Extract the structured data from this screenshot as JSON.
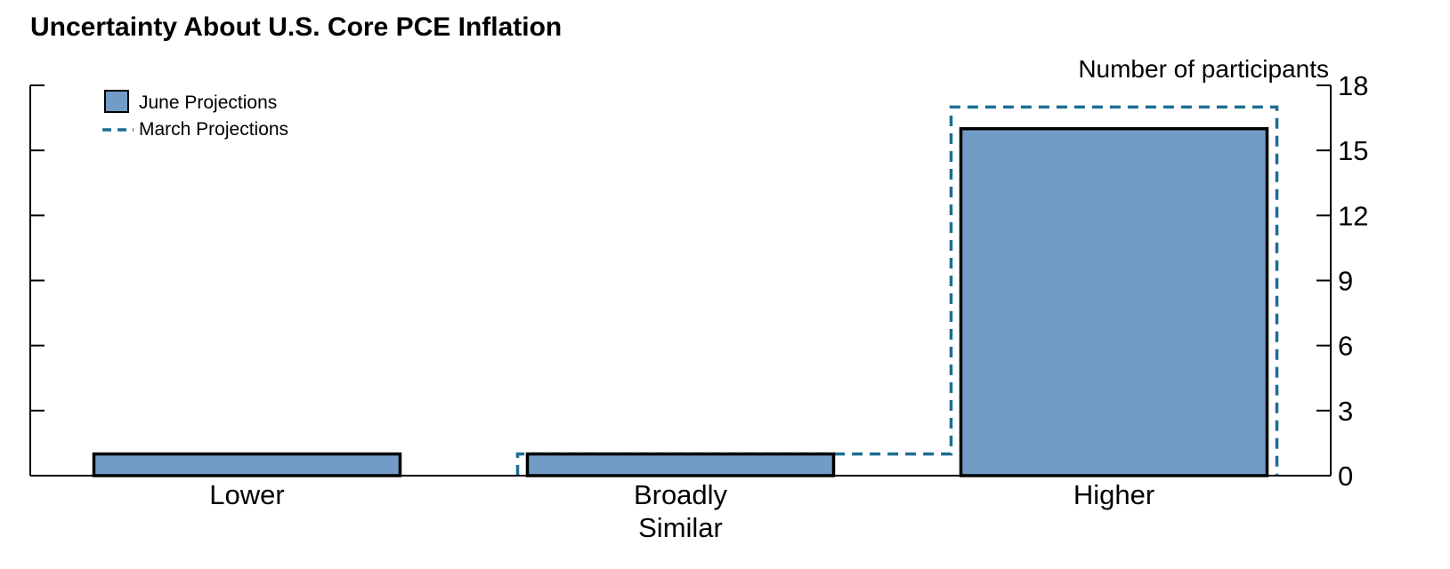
{
  "chart_data": {
    "type": "bar",
    "title": "Uncertainty About U.S. Core PCE Inflation",
    "ylabel": "Number of participants",
    "categories": [
      [
        "Lower"
      ],
      [
        "Broadly",
        "Similar"
      ],
      [
        "Higher"
      ]
    ],
    "series": [
      {
        "name": "June Projections",
        "values": [
          1,
          1,
          16
        ],
        "style": "filled",
        "color": "#729cc5"
      },
      {
        "name": "March Projections",
        "values": [
          0,
          1,
          17
        ],
        "style": "dashed-step",
        "color": "#1d6e93"
      }
    ],
    "ylim": [
      0,
      18
    ],
    "yticks": [
      0,
      3,
      6,
      9,
      12,
      15,
      18
    ],
    "yaxis_side": "right",
    "grid": false,
    "legend_position": "top-left"
  }
}
